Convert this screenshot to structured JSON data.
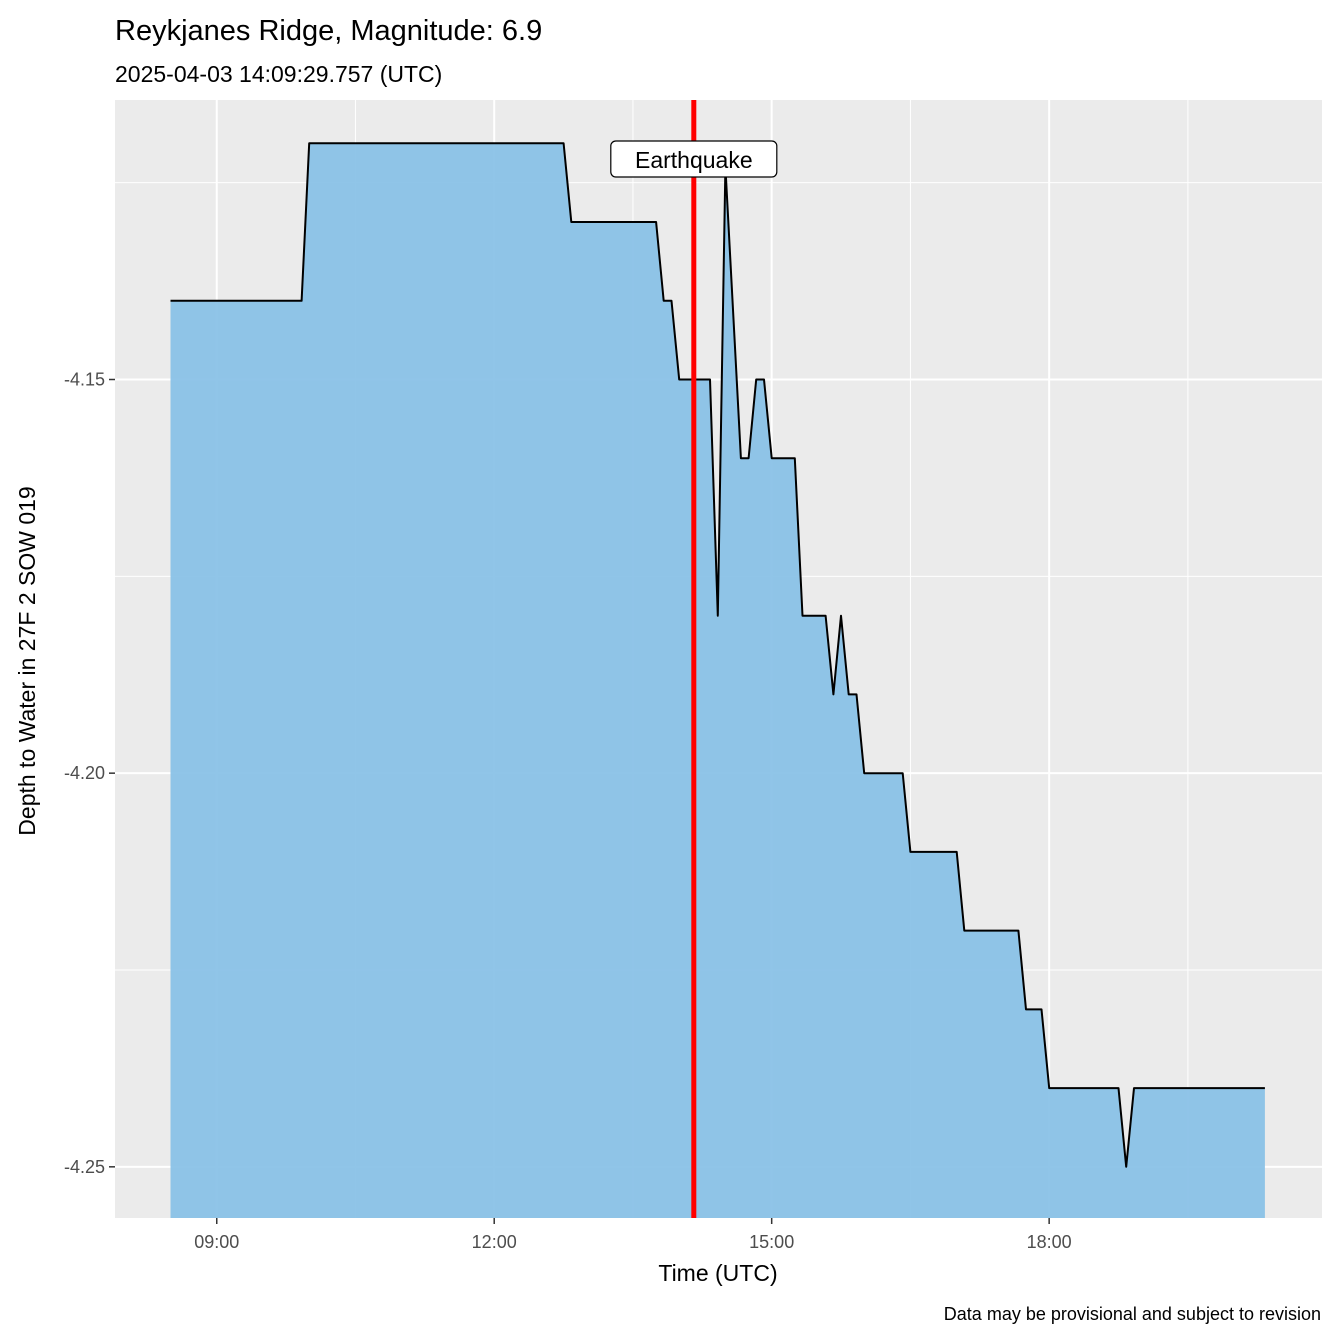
{
  "chart_data": {
    "type": "area",
    "title": "Reykjanes Ridge, Magnitude: 6.9",
    "subtitle": "2025-04-03 14:09:29.757 (UTC)",
    "xlabel": "Time (UTC)",
    "ylabel": "Depth to Water in 27F 2 SOW 019",
    "caption": "Data may be provisional and subject to revision",
    "x_ticks": [
      "09:00",
      "12:00",
      "15:00",
      "18:00"
    ],
    "x_tick_hours": [
      9,
      12,
      15,
      18
    ],
    "y_ticks": [
      -4.15,
      -4.2,
      -4.25
    ],
    "y_tick_labels": [
      "-4.15",
      "-4.20",
      "-4.25"
    ],
    "xlim_hours": [
      7.9,
      20.95
    ],
    "ylim": [
      -4.2565,
      -4.1145
    ],
    "grid": true,
    "fill_color": "#87C0E6",
    "line_color": "#000000",
    "event": {
      "label": "Earthquake",
      "time": "14:09:29.757",
      "time_hours": 14.158,
      "color": "#FF0000"
    },
    "x_hours": [
      8.5,
      9.917,
      10.0,
      12.75,
      12.833,
      13.75,
      13.833,
      13.917,
      14.0,
      14.167,
      14.333,
      14.417,
      14.5,
      14.667,
      14.75,
      14.833,
      14.917,
      15.0,
      15.25,
      15.333,
      15.583,
      15.667,
      15.75,
      15.833,
      15.917,
      16.0,
      16.417,
      16.5,
      17.0,
      17.083,
      17.667,
      17.75,
      17.917,
      18.0,
      18.75,
      18.833,
      18.917,
      20.333
    ],
    "values": [
      -4.14,
      -4.14,
      -4.12,
      -4.12,
      -4.13,
      -4.13,
      -4.14,
      -4.14,
      -4.15,
      -4.15,
      -4.15,
      -4.18,
      -4.123,
      -4.16,
      -4.16,
      -4.15,
      -4.15,
      -4.16,
      -4.16,
      -4.18,
      -4.18,
      -4.19,
      -4.18,
      -4.19,
      -4.19,
      -4.2,
      -4.2,
      -4.21,
      -4.21,
      -4.22,
      -4.22,
      -4.23,
      -4.23,
      -4.24,
      -4.24,
      -4.25,
      -4.24,
      -4.24
    ]
  }
}
